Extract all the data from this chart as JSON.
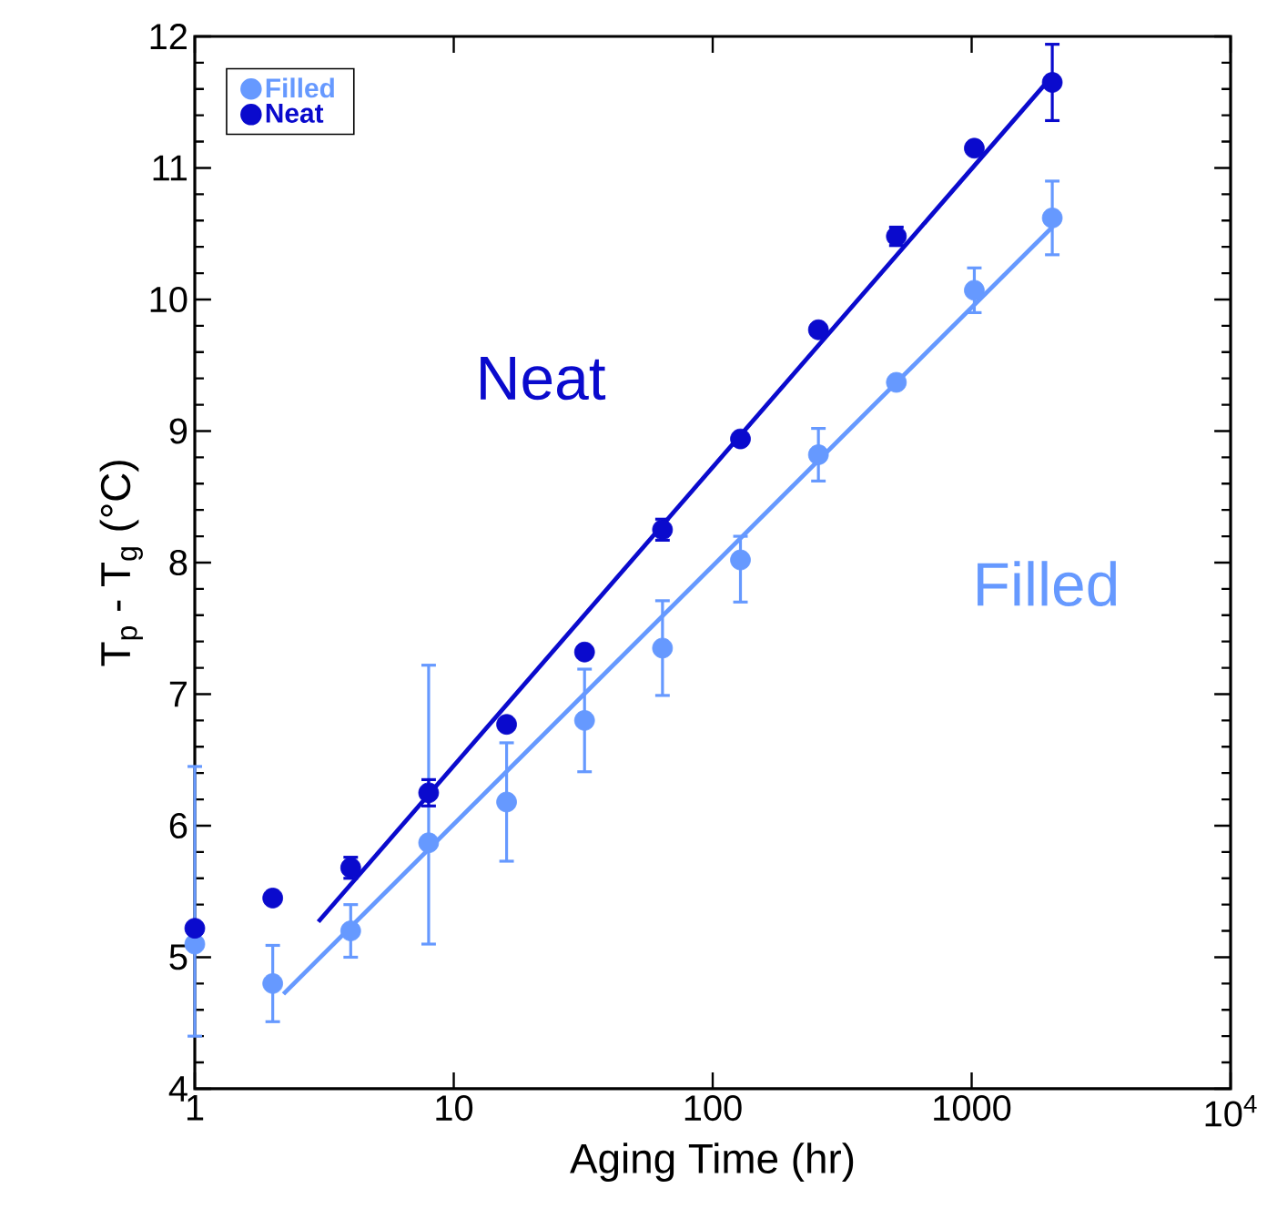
{
  "chart_data": {
    "type": "scatter",
    "xlabel": "Aging Time (hr)",
    "ylabel": "T$_{p}$ - T$_{g}$ (°C)",
    "log": "x",
    "xlim": [
      1,
      10000
    ],
    "ylim": [
      4,
      12
    ],
    "xticks": [
      1,
      10,
      100,
      1000,
      {
        "value": 10000,
        "label": "10$^{4}$"
      }
    ],
    "yticks": [
      4,
      5,
      6,
      7,
      8,
      9,
      10,
      11,
      12
    ],
    "legend": "top left",
    "series": [
      {
        "name": "Filled",
        "marker": "circle",
        "color": "#6699ff",
        "x": [
          1,
          2,
          4,
          8,
          16,
          32,
          64,
          128,
          256,
          512,
          1024,
          2048
        ],
        "values": [
          5.1,
          4.8,
          5.2,
          5.87,
          6.18,
          6.8,
          7.35,
          8.02,
          8.82,
          9.37,
          10.07,
          10.62
        ],
        "errors": [
          [
            4.4,
            6.45
          ],
          0.29,
          0.2,
          [
            5.1,
            7.22
          ],
          0.45,
          0.39,
          0.36,
          [
            7.7,
            8.2
          ],
          0.2,
          null,
          0.17,
          0.28
        ]
      },
      {
        "name": "Neat",
        "marker": "circle",
        "color": "#0a0acd",
        "x": [
          1,
          2,
          4,
          8,
          16,
          32,
          64,
          128,
          256,
          512,
          1024,
          2048
        ],
        "values": [
          5.22,
          5.45,
          5.68,
          6.25,
          6.77,
          7.32,
          8.25,
          8.94,
          9.77,
          10.48,
          11.15,
          11.65
        ],
        "errors": [
          null,
          null,
          0.08,
          0.1,
          null,
          null,
          0.08,
          null,
          null,
          0.07,
          null,
          0.29
        ]
      },
      {
        "type": "line",
        "marker": "none",
        "color": "#6699ff",
        "x": [
          2.2,
          2048
        ],
        "values": [
          4.72,
          10.55
        ]
      },
      {
        "type": "line",
        "marker": "none",
        "color": "#0a0acd",
        "x": [
          3,
          2048
        ],
        "values": [
          5.27,
          11.7
        ]
      }
    ],
    "annotations": [
      "Filled",
      "Neat"
    ]
  }
}
